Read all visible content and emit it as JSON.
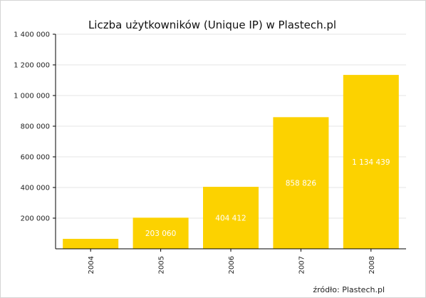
{
  "chart_data": {
    "type": "bar",
    "title": "Liczba użytkowników (Unique IP) w Plastech.pl",
    "categories": [
      "2004",
      "2005",
      "2006",
      "2007",
      "2008"
    ],
    "values": [
      65000,
      203060,
      404412,
      858826,
      1134439
    ],
    "value_labels": [
      "",
      "203 060",
      "404 412",
      "858 826",
      "1 134 439"
    ],
    "ylim": [
      0,
      1400000
    ],
    "yticks": [
      200000,
      400000,
      600000,
      800000,
      1000000,
      1200000,
      1400000
    ],
    "ytick_labels": [
      "200 000",
      "400 000",
      "600 000",
      "800 000",
      "1 000 000",
      "1 200 000",
      "1 400 000"
    ],
    "xlabel": "",
    "ylabel": "",
    "grid": true,
    "source": "źródło: Plastech.pl",
    "bar_color": "#fcd200",
    "grid_color": "#e6e6e6",
    "axis_color": "#000000"
  }
}
